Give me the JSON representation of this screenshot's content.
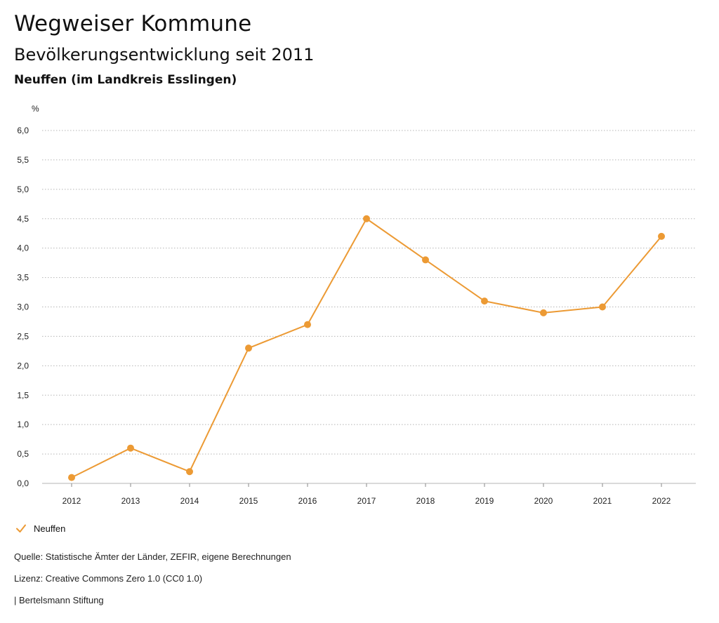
{
  "header": {
    "title": "Wegweiser Kommune",
    "subtitle": "Bevölkerungsentwicklung seit 2011",
    "region": "Neuffen (im Landkreis Esslingen)"
  },
  "footer": {
    "source": "Quelle: Statistische Ämter der Länder, ZEFIR, eigene Berechnungen",
    "license": "Lizenz: Creative Commons Zero 1.0 (CC0 1.0)",
    "publisher": "| Bertelsmann Stiftung"
  },
  "colors": {
    "series": "#ec9a34",
    "grid": "#b5b5b5"
  },
  "chart_data": {
    "type": "line",
    "title": "Bevölkerungsentwicklung seit 2011",
    "xlabel": "",
    "ylabel": "%",
    "ylim": [
      0,
      6
    ],
    "grid": true,
    "legend_position": "bottom-left",
    "x": [
      "2012",
      "2013",
      "2014",
      "2015",
      "2016",
      "2017",
      "2018",
      "2019",
      "2020",
      "2021",
      "2022"
    ],
    "y_ticks": [
      "0,0",
      "0,5",
      "1,0",
      "1,5",
      "2,0",
      "2,5",
      "3,0",
      "3,5",
      "4,0",
      "4,5",
      "5,0",
      "5,5",
      "6,0"
    ],
    "series": [
      {
        "name": "Neuffen",
        "values": [
          0.1,
          0.6,
          0.2,
          2.3,
          2.7,
          4.5,
          3.8,
          3.1,
          2.9,
          3.0,
          4.2
        ]
      }
    ]
  }
}
